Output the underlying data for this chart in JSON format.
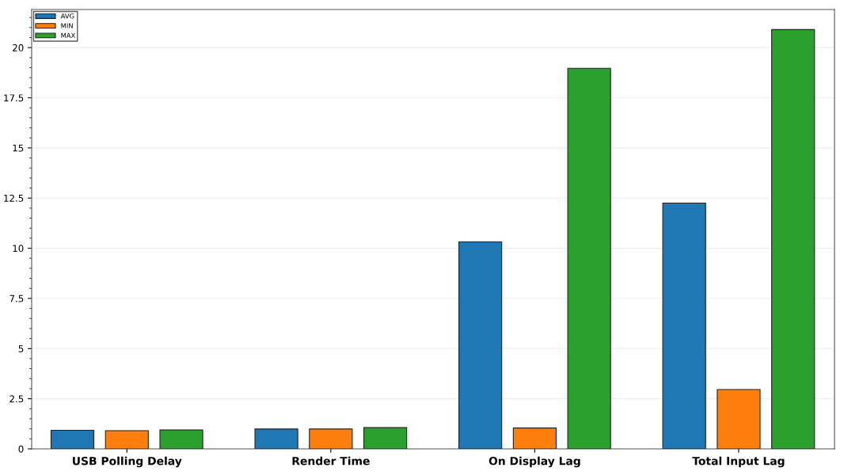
{
  "chart_data": {
    "type": "bar",
    "categories": [
      "USB Polling Delay",
      "Render Time",
      "On Display Lag",
      "Total Input Lag"
    ],
    "series": [
      {
        "name": "AVG",
        "color": "#1f77b4",
        "values": [
          0.93,
          0.99,
          10.32,
          12.25
        ]
      },
      {
        "name": "MIN",
        "color": "#ff7f0e",
        "values": [
          0.91,
          0.99,
          1.04,
          2.96
        ]
      },
      {
        "name": "MAX",
        "color": "#2ca02c",
        "values": [
          0.94,
          1.06,
          18.97,
          20.9
        ]
      }
    ],
    "ylim": [
      0,
      21.9
    ],
    "yticks": [
      0,
      2.5,
      5,
      7.5,
      10,
      12.5,
      15,
      17.5,
      20
    ],
    "grid": "y",
    "legend": "top left"
  }
}
